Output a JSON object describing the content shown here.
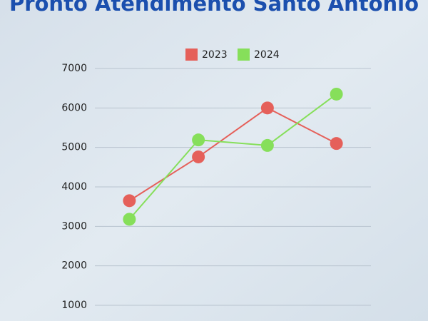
{
  "chart_data": {
    "type": "line",
    "title": "Pronto Atendimento Santo Antônio",
    "categories": [
      null,
      null,
      null,
      null
    ],
    "series": [
      {
        "name": "2023",
        "color": "#e5605a",
        "values": [
          3650,
          4760,
          6000,
          5100
        ]
      },
      {
        "name": "2024",
        "color": "#86df5a",
        "values": [
          3180,
          5190,
          5050,
          6350
        ]
      }
    ],
    "ylim": [
      1000,
      7000
    ],
    "yticks": [
      1000,
      2000,
      3000,
      4000,
      5000,
      6000,
      7000
    ],
    "grid": true,
    "legend": "top"
  }
}
